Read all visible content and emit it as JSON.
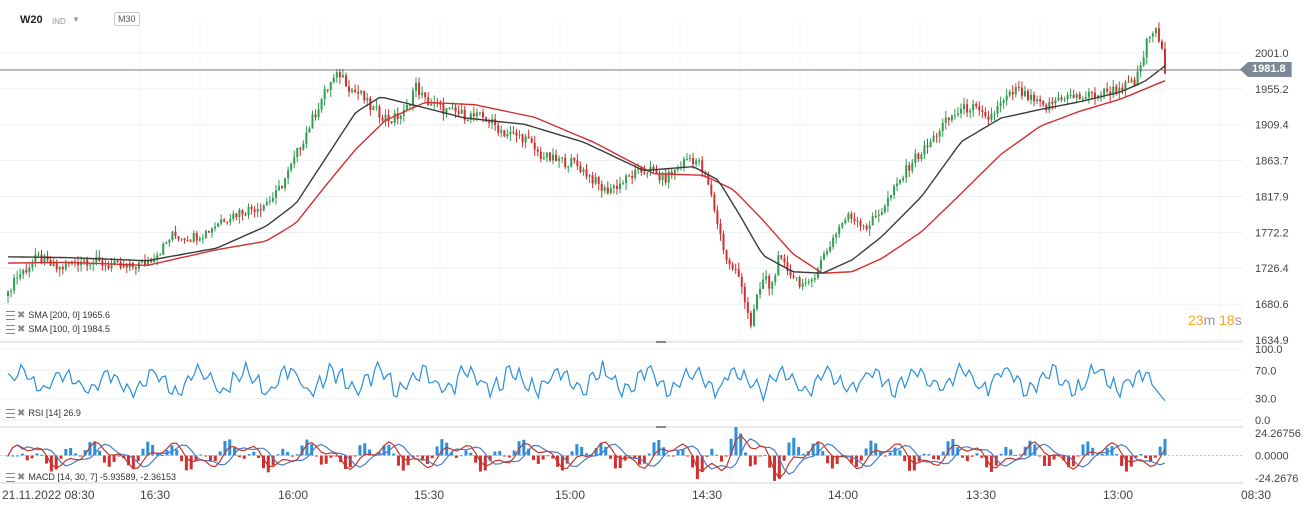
{
  "header": {
    "symbol": "W20",
    "instrument_type": "IND",
    "timeframe": "M30"
  },
  "current_price": "1981.8",
  "countdown": {
    "min": "23",
    "min_unit": "m",
    "sec": "18",
    "sec_unit": "s"
  },
  "indicators": {
    "sma200": "SMA [200, 0] 1965.6",
    "sma100": "SMA [100, 0] 1984.5",
    "rsi": "RSI [14] 26.9",
    "macd": "MACD [14, 30, 7] -5.93589, -2.36153"
  },
  "colors": {
    "up": "#2e9e4f",
    "down": "#d22f2f",
    "sma_dark": "#3b3b3b",
    "sma_red": "#d22f2f",
    "rsi": "#2a8fdc",
    "macd_hist": "#2a8fdc"
  },
  "chart_data": [
    {
      "type": "candlestick",
      "title": "",
      "xlabel": "",
      "ylabel": "",
      "ylim": [
        1634.9,
        2046.8
      ],
      "y_ticks": [
        "2001.0",
        "1955.2",
        "1909.4",
        "1863.7",
        "1817.9",
        "1772.2",
        "1726.4",
        "1680.6",
        "1634.9"
      ],
      "x_ticks": [
        "21.11.2022 08:30",
        "16:30",
        "16:00",
        "15:30",
        "15:00",
        "14:30",
        "14:00",
        "13:30",
        "13:00",
        "08:30"
      ],
      "grid": true,
      "price_series": {
        "name": "W20 close (approx.)",
        "x": [
          0,
          5,
          15,
          30,
          50,
          75,
          100,
          120,
          140,
          155,
          165,
          185,
          200,
          215,
          235,
          255,
          270,
          285,
          295,
          305,
          315,
          325,
          335,
          345,
          355,
          365,
          375,
          385,
          400,
          410,
          420,
          440,
          460,
          480,
          500,
          520,
          535,
          550,
          570,
          585,
          600,
          615,
          630,
          645,
          660,
          672,
          685,
          695,
          705,
          712,
          718,
          725,
          732,
          740,
          748,
          755,
          762,
          768,
          775,
          785,
          795,
          805,
          815,
          825,
          835,
          845,
          855,
          865,
          880,
          895,
          910,
          925,
          940,
          955,
          970,
          985,
          1000,
          1015,
          1030,
          1045,
          1060,
          1080,
          1100,
          1120,
          1135,
          1142,
          1148,
          1155,
          1160,
          1165
        ],
        "values": [
          1691,
          1712,
          1722,
          1740,
          1725,
          1738,
          1731,
          1726,
          1735,
          1751,
          1768,
          1766,
          1773,
          1789,
          1799,
          1806,
          1820,
          1855,
          1885,
          1912,
          1940,
          1963,
          1975,
          1955,
          1948,
          1931,
          1923,
          1915,
          1925,
          1960,
          1940,
          1928,
          1922,
          1918,
          1899,
          1893,
          1871,
          1864,
          1861,
          1845,
          1825,
          1833,
          1846,
          1853,
          1839,
          1851,
          1868,
          1862,
          1833,
          1798,
          1765,
          1731,
          1725,
          1699,
          1655,
          1691,
          1717,
          1698,
          1737,
          1725,
          1712,
          1700,
          1728,
          1750,
          1776,
          1792,
          1789,
          1779,
          1802,
          1831,
          1863,
          1880,
          1907,
          1925,
          1933,
          1915,
          1935,
          1954,
          1941,
          1930,
          1946,
          1944,
          1949,
          1957,
          1962,
          1990,
          2021,
          2030,
          2012,
          1981.8
        ]
      },
      "sma_100": {
        "name": "SMA [100, 0] 1984.5",
        "x": [
          0,
          60,
          140,
          210,
          260,
          290,
          320,
          350,
          375,
          410,
          460,
          520,
          580,
          640,
          690,
          715,
          735,
          760,
          790,
          820,
          850,
          880,
          920,
          960,
          1000,
          1040,
          1080,
          1120,
          1145,
          1165
        ],
        "values": [
          1741,
          1740,
          1736,
          1752,
          1780,
          1809,
          1867,
          1925,
          1945,
          1934,
          1918,
          1910,
          1887,
          1851,
          1856,
          1839,
          1798,
          1743,
          1722,
          1720,
          1737,
          1767,
          1818,
          1888,
          1918,
          1929,
          1939,
          1951,
          1965,
          1984.5
        ]
      },
      "sma_200": {
        "name": "SMA [200, 0] 1965.6",
        "x": [
          0,
          60,
          140,
          210,
          260,
          290,
          320,
          350,
          380,
          420,
          470,
          530,
          590,
          650,
          700,
          730,
          760,
          790,
          820,
          850,
          880,
          920,
          960,
          1000,
          1040,
          1080,
          1120,
          1145,
          1165
        ],
        "values": [
          1733,
          1734,
          1730,
          1750,
          1761,
          1784,
          1832,
          1878,
          1915,
          1938,
          1935,
          1919,
          1887,
          1847,
          1845,
          1827,
          1788,
          1745,
          1720,
          1722,
          1739,
          1773,
          1822,
          1872,
          1908,
          1927,
          1942,
          1955,
          1965.6
        ]
      }
    },
    {
      "type": "line",
      "title": "RSI [14] 26.9",
      "ylim": [
        0,
        100
      ],
      "y_ticks": [
        "100.0",
        "70.0",
        "30.0",
        "0.0"
      ],
      "last_value": 26.9
    },
    {
      "type": "line",
      "title": "MACD [14, 30, 7] -5.93589, -2.36153",
      "ylim": [
        -24.2676,
        24.26756
      ],
      "y_ticks": [
        "24.26756",
        "0.0000",
        "-24.2676"
      ],
      "last_values": [
        -5.93589,
        -2.36153
      ]
    }
  ]
}
